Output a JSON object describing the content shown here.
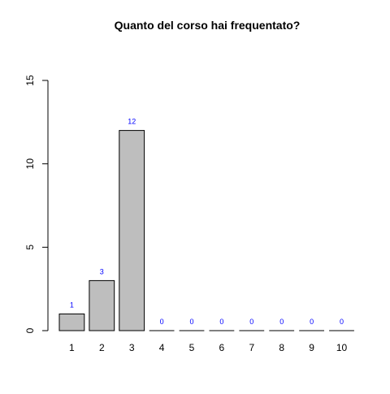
{
  "colors": {
    "bar_fill": "#bebebe",
    "bar_stroke": "#000000",
    "value_label": "#0000ff",
    "axis": "#000000"
  },
  "chart_data": {
    "type": "bar",
    "title": "Quanto del corso hai frequentato?",
    "xlabel": "",
    "ylabel": "",
    "categories": [
      "1",
      "2",
      "3",
      "4",
      "5",
      "6",
      "7",
      "8",
      "9",
      "10"
    ],
    "values": [
      1,
      3,
      12,
      0,
      0,
      0,
      0,
      0,
      0,
      0
    ],
    "value_labels": [
      "1",
      "3",
      "12",
      "0",
      "0",
      "0",
      "0",
      "0",
      "0",
      "0"
    ],
    "ylim": [
      0,
      15
    ],
    "y_ticks": [
      0,
      5,
      10,
      15
    ],
    "y_tick_labels": [
      "0",
      "5",
      "10",
      "15"
    ],
    "grid": false,
    "legend": "none"
  }
}
